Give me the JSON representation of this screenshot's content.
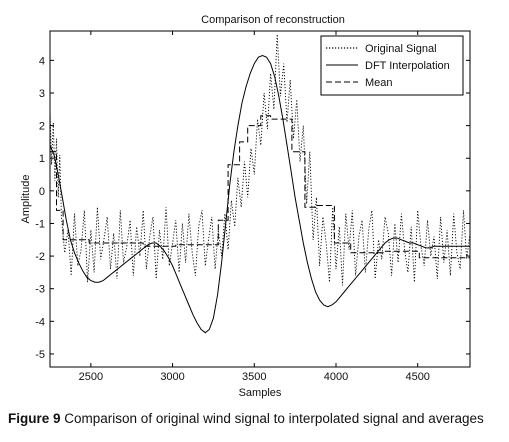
{
  "caption": {
    "label": "Figure 9",
    "text": "Comparison of original wind signal to interpolated signal and averages"
  },
  "chart_data": {
    "type": "line",
    "title": "Comparison of reconstruction",
    "xlabel": "Samples",
    "ylabel": "Amplitude",
    "xlim": [
      2250,
      4820
    ],
    "ylim": [
      -5.4,
      4.9
    ],
    "xticks": [
      2500,
      3000,
      3500,
      4000,
      4500
    ],
    "yticks": [
      -5,
      -4,
      -3,
      -2,
      -1,
      0,
      1,
      2,
      3,
      4
    ],
    "grid": false,
    "legend_position": "top-right",
    "series": [
      {
        "name": "Original Signal",
        "style": "dotted",
        "x": [
          2250,
          2260,
          2270,
          2280,
          2290,
          2300,
          2310,
          2320,
          2340,
          2360,
          2380,
          2400,
          2420,
          2440,
          2460,
          2480,
          2500,
          2520,
          2540,
          2560,
          2580,
          2600,
          2620,
          2640,
          2660,
          2680,
          2700,
          2720,
          2740,
          2760,
          2780,
          2800,
          2820,
          2840,
          2860,
          2880,
          2900,
          2920,
          2940,
          2960,
          2980,
          3000,
          3020,
          3040,
          3060,
          3080,
          3100,
          3120,
          3140,
          3160,
          3180,
          3200,
          3220,
          3240,
          3260,
          3280,
          3300,
          3320,
          3340,
          3360,
          3380,
          3400,
          3420,
          3440,
          3460,
          3480,
          3500,
          3520,
          3540,
          3560,
          3580,
          3600,
          3620,
          3640,
          3660,
          3680,
          3700,
          3720,
          3740,
          3760,
          3780,
          3800,
          3820,
          3840,
          3860,
          3880,
          3900,
          3920,
          3940,
          3960,
          3980,
          4000,
          4020,
          4040,
          4060,
          4080,
          4100,
          4120,
          4140,
          4160,
          4180,
          4200,
          4220,
          4240,
          4260,
          4280,
          4300,
          4320,
          4340,
          4360,
          4380,
          4400,
          4420,
          4440,
          4460,
          4480,
          4500,
          4520,
          4540,
          4560,
          4580,
          4600,
          4620,
          4640,
          4660,
          4680,
          4700,
          4720,
          4740,
          4760,
          4780,
          4800,
          4820
        ],
        "values": [
          2.5,
          0.8,
          2.1,
          0.3,
          1.6,
          -0.2,
          1.1,
          -0.8,
          -1.9,
          -1.2,
          -2.6,
          -0.7,
          -2.3,
          -1.8,
          -0.6,
          -2.8,
          -1.2,
          -2.5,
          -0.5,
          -2.1,
          -1.5,
          -0.8,
          -2.4,
          -1.3,
          -2.7,
          -0.6,
          -2.2,
          -1.7,
          -0.9,
          -2.6,
          -1.1,
          -2.0,
          -0.6,
          -2.4,
          -1.4,
          -0.8,
          -2.7,
          -1.2,
          -2.1,
          -0.5,
          -2.3,
          -1.6,
          -0.9,
          -2.5,
          -1.0,
          -2.2,
          -0.7,
          -1.9,
          -2.6,
          -1.1,
          -0.6,
          -2.3,
          -1.5,
          -0.8,
          -2.4,
          -1.2,
          -2.0,
          -0.7,
          -1.8,
          -0.3,
          -1.1,
          0.4,
          -0.5,
          0.9,
          -0.2,
          1.3,
          0.5,
          2.2,
          1.4,
          3.0,
          1.9,
          3.6,
          2.5,
          4.8,
          2.9,
          3.9,
          2.1,
          3.4,
          1.6,
          2.8,
          0.9,
          2.0,
          -0.4,
          1.2,
          -1.5,
          -0.2,
          -2.3,
          -0.8,
          -1.6,
          -2.8,
          -0.5,
          -2.4,
          -1.1,
          -2.9,
          -0.7,
          -1.8,
          -0.6,
          -2.6,
          -1.4,
          -0.9,
          -2.5,
          -1.2,
          -0.6,
          -2.7,
          -1.5,
          -2.1,
          -0.8,
          -1.3,
          -2.6,
          -1.0,
          -2.2,
          -0.7,
          -1.8,
          -2.5,
          -1.1,
          -2.8,
          -0.6,
          -1.7,
          -2.3,
          -0.9,
          -2.0,
          -1.4,
          -2.7,
          -0.8,
          -2.2,
          -1.2,
          -2.6,
          -0.7,
          -1.9,
          -2.4,
          -0.6,
          -2.1,
          -1.3
        ]
      },
      {
        "name": "DFT Interpolation",
        "style": "solid",
        "x": [
          2250,
          2275,
          2300,
          2325,
          2350,
          2375,
          2400,
          2425,
          2450,
          2475,
          2500,
          2525,
          2550,
          2575,
          2600,
          2625,
          2650,
          2675,
          2700,
          2725,
          2750,
          2775,
          2800,
          2825,
          2850,
          2875,
          2900,
          2925,
          2950,
          2975,
          3000,
          3025,
          3050,
          3075,
          3100,
          3125,
          3150,
          3175,
          3200,
          3225,
          3250,
          3275,
          3300,
          3325,
          3350,
          3375,
          3400,
          3425,
          3450,
          3475,
          3500,
          3525,
          3550,
          3575,
          3600,
          3625,
          3650,
          3675,
          3700,
          3725,
          3750,
          3775,
          3800,
          3825,
          3850,
          3875,
          3900,
          3925,
          3950,
          3975,
          4000,
          4025,
          4050,
          4075,
          4100,
          4125,
          4150,
          4175,
          4200,
          4225,
          4250,
          4275,
          4300,
          4325,
          4350,
          4375,
          4400,
          4425,
          4450,
          4475,
          4500,
          4525,
          4550,
          4575,
          4600,
          4625,
          4650,
          4675,
          4700,
          4725,
          4750,
          4775,
          4800,
          4820
        ],
        "values": [
          1.4,
          1.1,
          0.5,
          -0.2,
          -0.9,
          -1.5,
          -1.9,
          -2.2,
          -2.45,
          -2.65,
          -2.75,
          -2.8,
          -2.8,
          -2.75,
          -2.65,
          -2.55,
          -2.45,
          -2.35,
          -2.25,
          -2.15,
          -2.05,
          -1.95,
          -1.85,
          -1.75,
          -1.65,
          -1.6,
          -1.6,
          -1.7,
          -1.85,
          -2.05,
          -2.3,
          -2.6,
          -2.9,
          -3.2,
          -3.5,
          -3.8,
          -4.05,
          -4.25,
          -4.35,
          -4.25,
          -3.9,
          -3.2,
          -2.2,
          -1.0,
          0.2,
          1.2,
          2.0,
          2.7,
          3.2,
          3.6,
          3.9,
          4.1,
          4.15,
          4.1,
          3.9,
          3.5,
          2.9,
          2.2,
          1.4,
          0.6,
          -0.2,
          -0.9,
          -1.6,
          -2.2,
          -2.7,
          -3.1,
          -3.35,
          -3.5,
          -3.55,
          -3.5,
          -3.4,
          -3.25,
          -3.1,
          -2.95,
          -2.8,
          -2.65,
          -2.5,
          -2.35,
          -2.2,
          -2.05,
          -1.9,
          -1.75,
          -1.6,
          -1.5,
          -1.45,
          -1.45,
          -1.5,
          -1.55,
          -1.6,
          -1.6,
          -1.65,
          -1.7,
          -1.75,
          -1.75,
          -1.7,
          -1.7,
          -1.7,
          -1.7,
          -1.7,
          -1.7,
          -1.7,
          -1.7,
          -1.7,
          -1.7
        ]
      },
      {
        "name": "Mean",
        "style": "dashed",
        "x": [
          2250,
          2290,
          2290,
          2330,
          2330,
          2490,
          2490,
          2820,
          2820,
          3020,
          3020,
          3280,
          3280,
          3340,
          3340,
          3410,
          3410,
          3460,
          3460,
          3540,
          3540,
          3600,
          3600,
          3730,
          3730,
          3810,
          3810,
          3870,
          3870,
          3990,
          3990,
          4090,
          4090,
          4290,
          4290,
          4510,
          4510,
          4820
        ],
        "values": [
          1.2,
          1.2,
          -0.6,
          -0.6,
          -1.5,
          -1.5,
          -1.6,
          -1.6,
          -1.7,
          -1.7,
          -1.65,
          -1.65,
          -0.9,
          -0.9,
          0.8,
          0.8,
          1.5,
          1.5,
          2.0,
          2.0,
          2.3,
          2.3,
          2.2,
          2.2,
          1.2,
          1.2,
          -0.5,
          -0.5,
          -0.45,
          -0.45,
          -1.6,
          -1.6,
          -1.9,
          -1.9,
          -1.85,
          -1.85,
          -2.05,
          -2.05
        ]
      }
    ]
  }
}
